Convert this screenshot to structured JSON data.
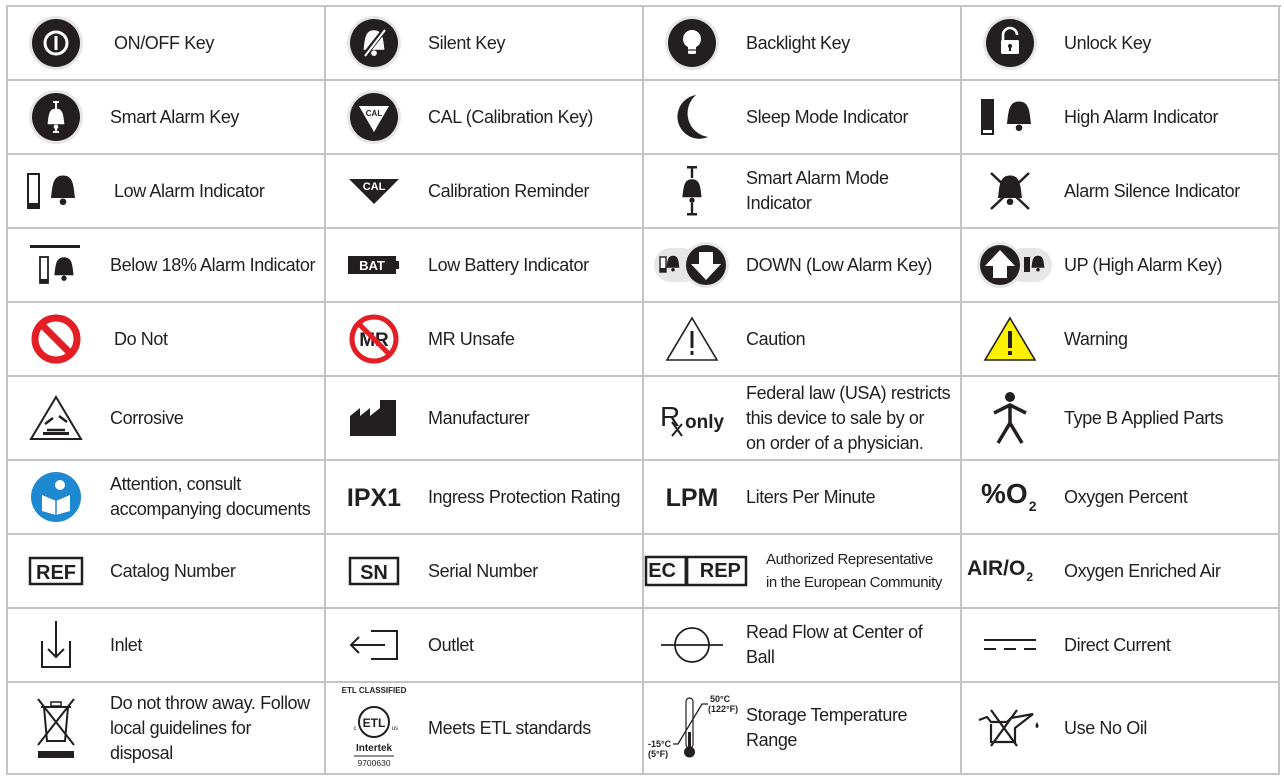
{
  "colors": {
    "text": "#231f20",
    "border": "#c4c4c4",
    "red": "#e31e24",
    "yellow": "#fff200",
    "blue": "#1e88d0"
  },
  "rows": [
    [
      {
        "icon": "power-key-icon",
        "label": "ON/OFF Key"
      },
      {
        "icon": "silent-key-icon",
        "label": "Silent Key"
      },
      {
        "icon": "backlight-key-icon",
        "label": "Backlight Key"
      },
      {
        "icon": "unlock-key-icon",
        "label": "Unlock Key"
      }
    ],
    [
      {
        "icon": "smart-alarm-key-icon",
        "label": "Smart Alarm Key"
      },
      {
        "icon": "calibration-key-icon",
        "label": "CAL (Calibration Key)",
        "icon_text": "CAL"
      },
      {
        "icon": "sleep-mode-icon",
        "label": "Sleep Mode Indicator"
      },
      {
        "icon": "high-alarm-icon",
        "label": "High Alarm Indicator"
      }
    ],
    [
      {
        "icon": "low-alarm-icon",
        "label": "Low Alarm Indicator"
      },
      {
        "icon": "calibration-reminder-icon",
        "label": "Calibration Reminder",
        "icon_text": "CAL"
      },
      {
        "icon": "smart-alarm-mode-icon",
        "label": "Smart Alarm Mode Indicator"
      },
      {
        "icon": "alarm-silence-icon",
        "label": "Alarm Silence Indicator"
      }
    ],
    [
      {
        "icon": "below-18-alarm-icon",
        "label": "Below 18% Alarm Indicator"
      },
      {
        "icon": "low-battery-icon",
        "label": "Low Battery Indicator",
        "icon_text": "BAT"
      },
      {
        "icon": "down-key-icon",
        "label": "DOWN (Low Alarm Key)"
      },
      {
        "icon": "up-key-icon",
        "label": "UP (High Alarm Key)"
      }
    ],
    [
      {
        "icon": "do-not-icon",
        "label": "Do Not"
      },
      {
        "icon": "mr-unsafe-icon",
        "label": "MR Unsafe",
        "icon_text": "MR"
      },
      {
        "icon": "caution-icon",
        "label": "Caution"
      },
      {
        "icon": "warning-icon",
        "label": "Warning"
      }
    ],
    [
      {
        "icon": "corrosive-icon",
        "label": "Corrosive"
      },
      {
        "icon": "manufacturer-icon",
        "label": "Manufacturer"
      },
      {
        "icon": "rx-only-icon",
        "label": "Federal law (USA) restricts\nthis device to sale by or\non order of a physician.",
        "icon_text": "only"
      },
      {
        "icon": "type-b-applied-parts-icon",
        "label": "Type B Applied Parts"
      }
    ],
    [
      {
        "icon": "consult-documents-icon",
        "label": "Attention, consult\naccompanying documents"
      },
      {
        "icon": "ipx1-icon",
        "label": "Ingress Protection Rating",
        "icon_text": "IPX1"
      },
      {
        "icon": "lpm-icon",
        "label": "Liters Per Minute",
        "icon_text": "LPM"
      },
      {
        "icon": "oxygen-percent-icon",
        "label": "Oxygen Percent",
        "icon_text": "%O2"
      }
    ],
    [
      {
        "icon": "ref-icon",
        "label": "Catalog Number",
        "icon_text": "REF"
      },
      {
        "icon": "sn-icon",
        "label": "Serial Number",
        "icon_text": "SN"
      },
      {
        "icon": "ec-rep-icon",
        "label": "Authorized Representative\nin the European Community",
        "icon_text": "EC|REP"
      },
      {
        "icon": "air-o2-icon",
        "label": "Oxygen Enriched Air",
        "icon_text": "AIR/O2"
      }
    ],
    [
      {
        "icon": "inlet-icon",
        "label": "Inlet"
      },
      {
        "icon": "outlet-icon",
        "label": "Outlet"
      },
      {
        "icon": "flow-ball-icon",
        "label": "Read Flow at Center of Ball"
      },
      {
        "icon": "direct-current-icon",
        "label": "Direct Current"
      }
    ],
    [
      {
        "icon": "weee-disposal-icon",
        "label": "Do not throw away. Follow\nlocal guidelines for disposal"
      },
      {
        "icon": "etl-icon",
        "label": "Meets ETL standards",
        "icon_text": "ETL CLASSIFIED|Intertek|9700630"
      },
      {
        "icon": "thermometer-icon",
        "label": "Storage Temperature Range",
        "icon_text": "50°C|(122°F)|-15°C|(5°F)"
      },
      {
        "icon": "no-oil-icon",
        "label": "Use No Oil"
      }
    ]
  ]
}
